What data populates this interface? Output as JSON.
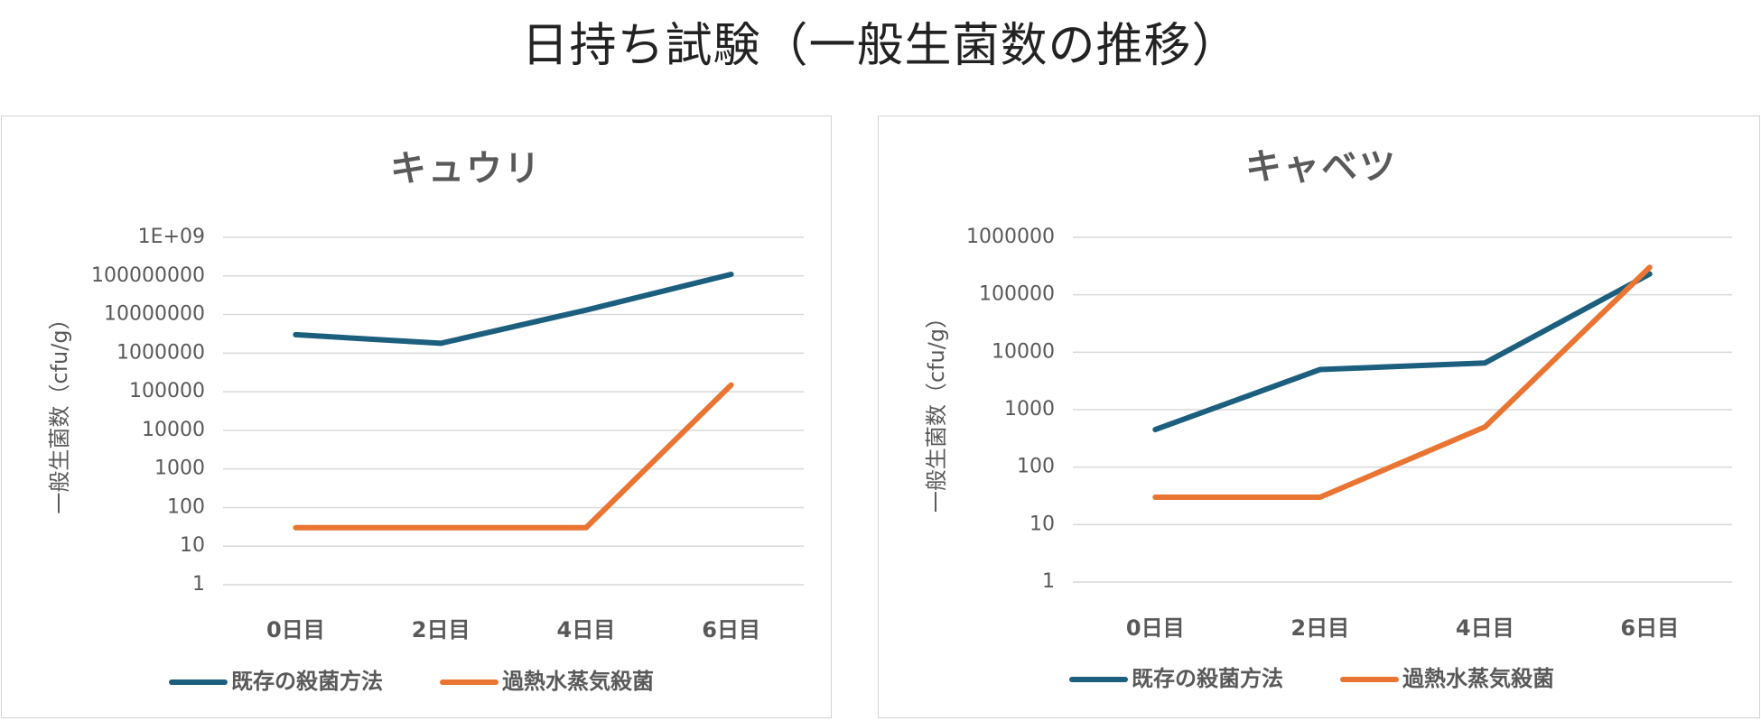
{
  "page_title": "日持ち試験（一般生菌数の推移）",
  "colors": {
    "series_existing": "#1b5e7e",
    "series_steam": "#ea7431",
    "grid": "#d9d9d9",
    "text": "#595959"
  },
  "chart_data": [
    {
      "type": "line",
      "title": "キュウリ",
      "ylabel": "一般生菌数（cfu/g）",
      "yscale": "log",
      "ylim": [
        1,
        1000000000
      ],
      "ytick_labels": [
        "1",
        "10",
        "100",
        "1000",
        "10000",
        "100000",
        "1000000",
        "10000000",
        "100000000",
        "1E+09"
      ],
      "categories": [
        "0日目",
        "2日目",
        "4日目",
        "6日目"
      ],
      "grid": true,
      "legend": "bottom",
      "series": [
        {
          "name": "既存の殺菌方法",
          "values": [
            3000000,
            1800000,
            13000000,
            110000000
          ]
        },
        {
          "name": "過熱水蒸気殺菌",
          "values": [
            30,
            30,
            30,
            150000
          ]
        }
      ]
    },
    {
      "type": "line",
      "title": "キャベツ",
      "ylabel": "一般生菌数（cfu/g）",
      "yscale": "log",
      "ylim": [
        1,
        1000000
      ],
      "ytick_labels": [
        "1",
        "10",
        "100",
        "1000",
        "10000",
        "100000",
        "1000000"
      ],
      "categories": [
        "0日目",
        "2日目",
        "4日目",
        "6日目"
      ],
      "grid": true,
      "legend": "bottom",
      "series": [
        {
          "name": "既存の殺菌方法",
          "values": [
            450,
            5000,
            6500,
            230000
          ]
        },
        {
          "name": "過熱水蒸気殺菌",
          "values": [
            30,
            30,
            500,
            300000
          ]
        }
      ]
    }
  ]
}
